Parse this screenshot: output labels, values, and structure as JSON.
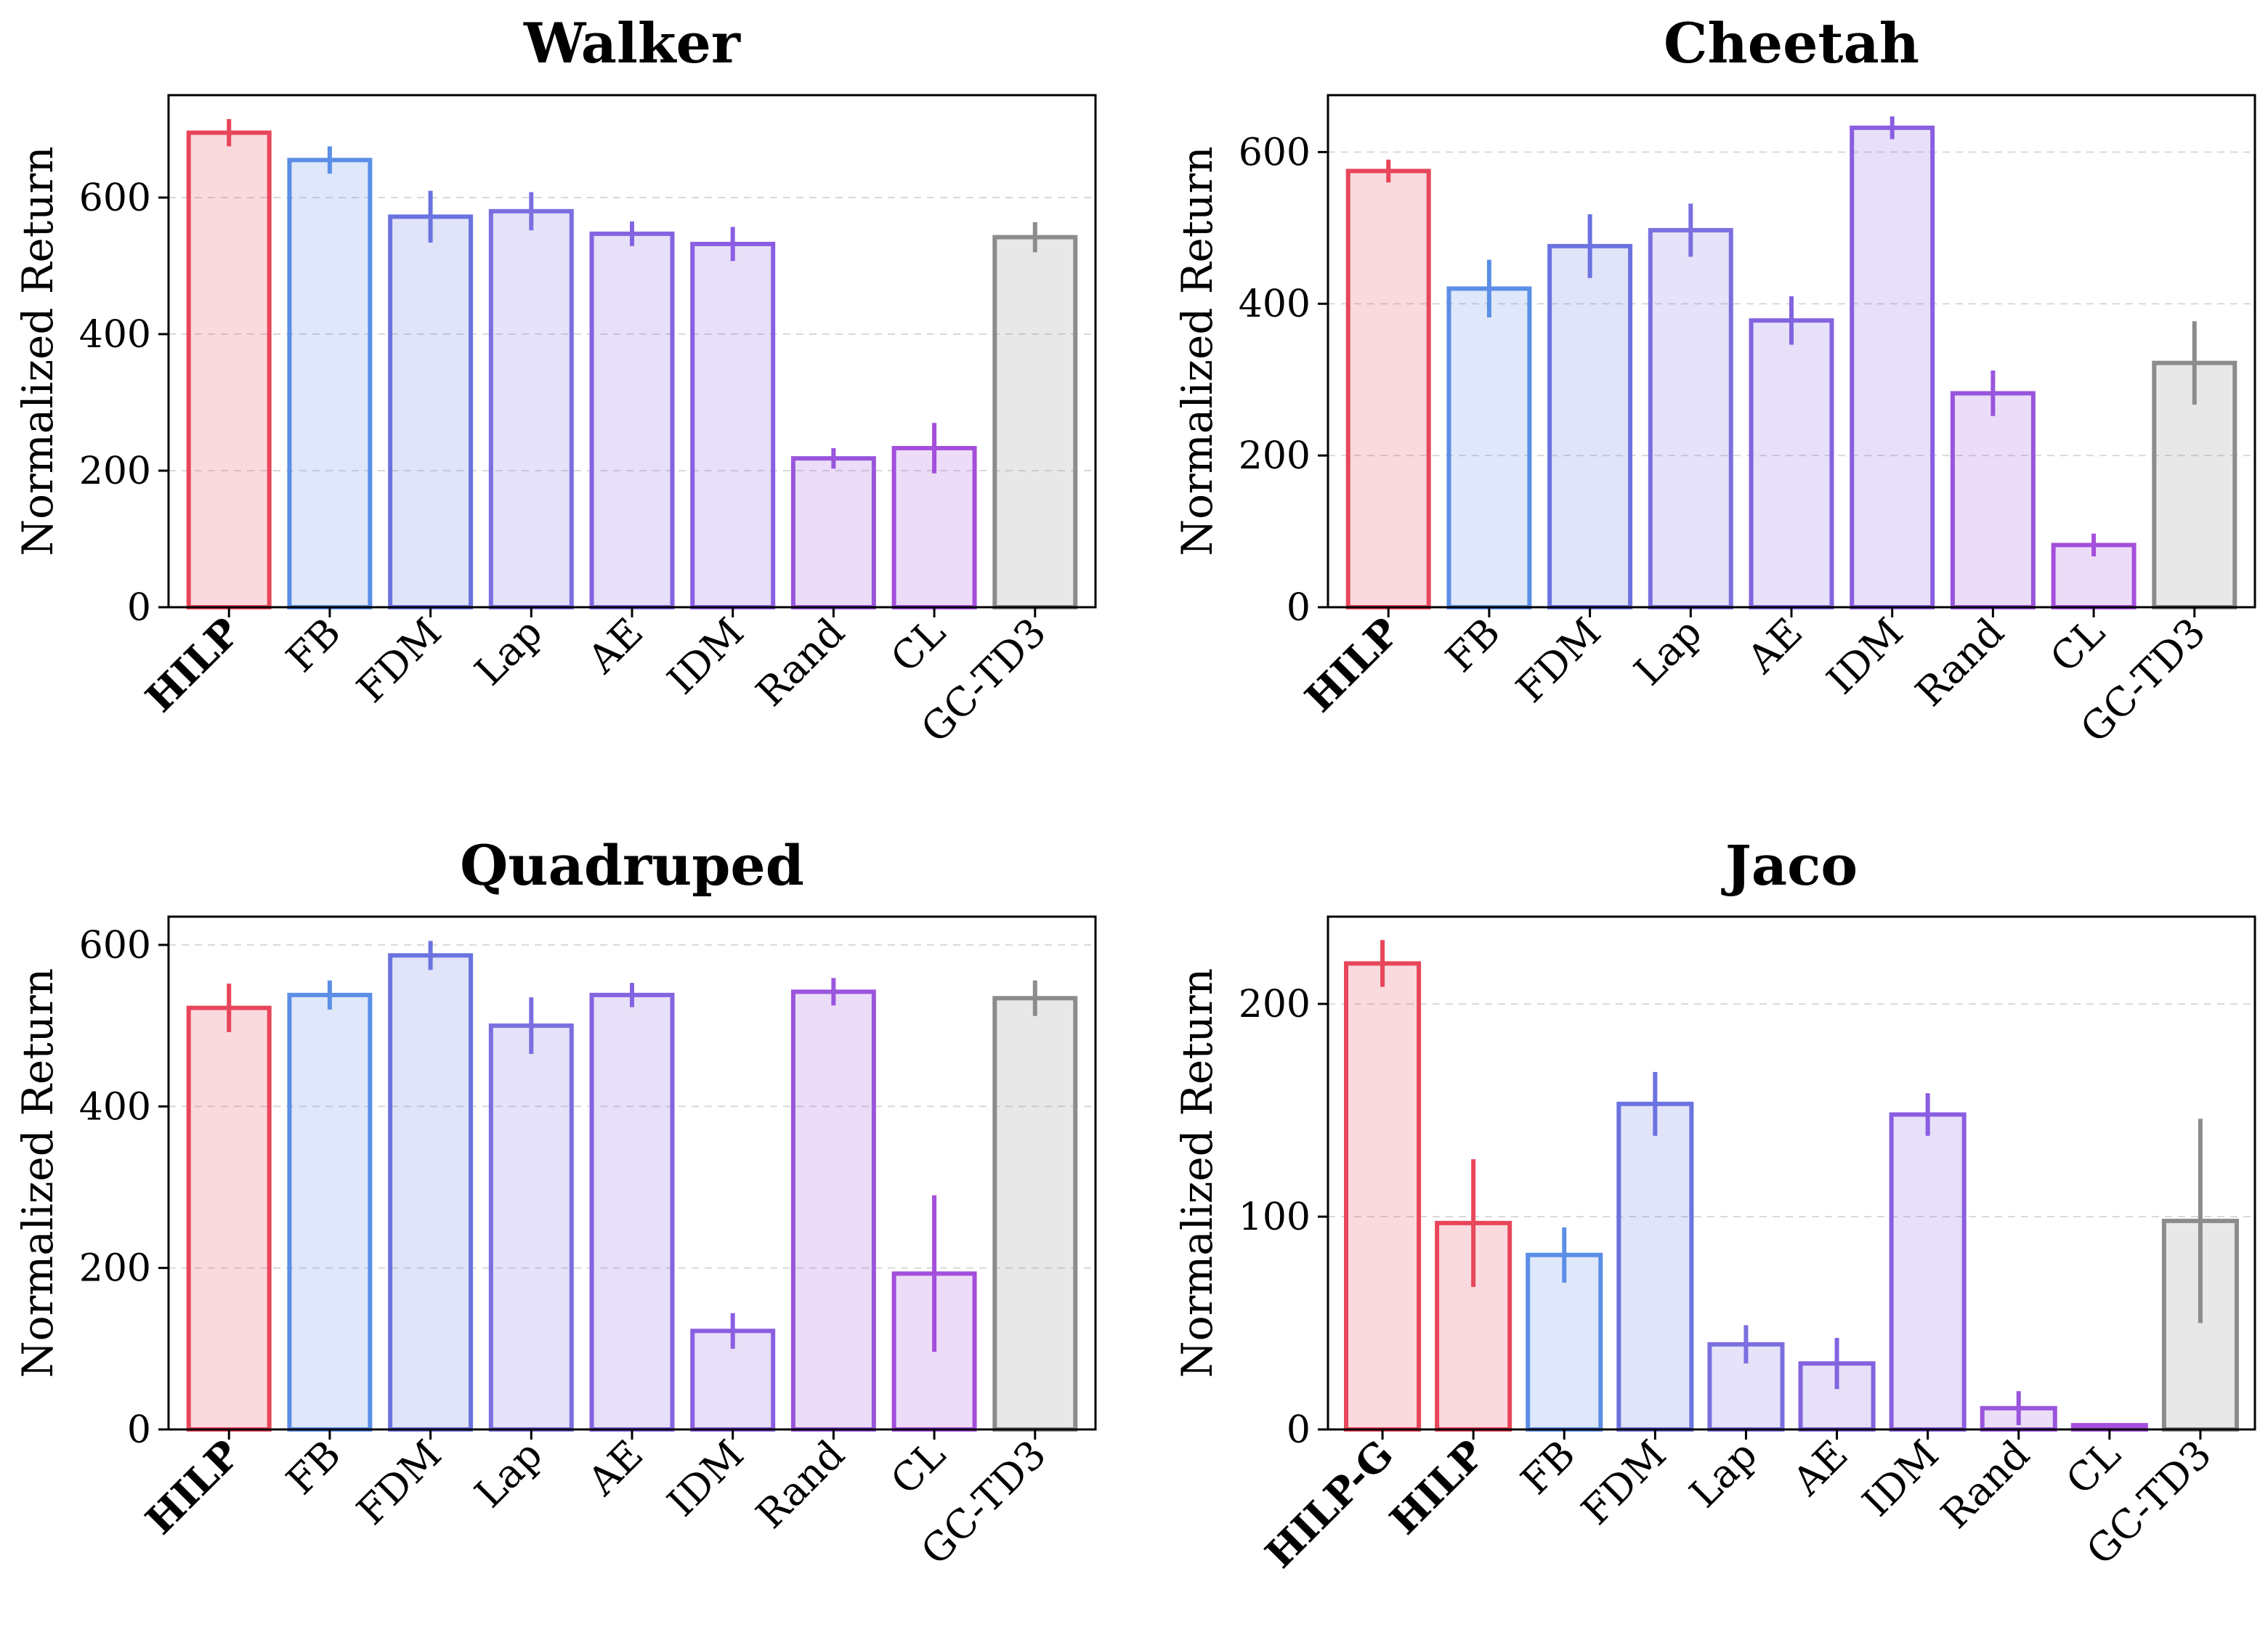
{
  "chart_data": [
    {
      "type": "bar",
      "title": "Walker",
      "ylabel": "Normalized Return",
      "ylim": [
        0,
        750
      ],
      "yticks": [
        0,
        200,
        400,
        600
      ],
      "grid": "y-dashed",
      "categories": [
        "HILP",
        "FB",
        "FDM",
        "Lap",
        "AE",
        "IDM",
        "Rand",
        "CL",
        "GC-TD3"
      ],
      "bold_categories": [
        "HILP"
      ],
      "values": [
        695,
        655,
        572,
        580,
        547,
        532,
        218,
        233,
        542
      ],
      "errors": [
        20,
        20,
        38,
        28,
        18,
        25,
        15,
        37,
        22
      ],
      "colors": [
        "#e8465a",
        "#5b8ee6",
        "#6b73e0",
        "#7b6fe0",
        "#8264e0",
        "#8a5ee2",
        "#9955dd",
        "#a44fdc",
        "#8c8c8c"
      ]
    },
    {
      "type": "bar",
      "title": "Cheetah",
      "ylabel": "Normalized Return",
      "ylim": [
        0,
        675
      ],
      "yticks": [
        0,
        200,
        400,
        600
      ],
      "grid": "y-dashed",
      "categories": [
        "HILP",
        "FB",
        "FDM",
        "Lap",
        "AE",
        "IDM",
        "Rand",
        "CL",
        "GC-TD3"
      ],
      "bold_categories": [
        "HILP"
      ],
      "values": [
        575,
        420,
        476,
        497,
        378,
        632,
        282,
        82,
        322
      ],
      "errors": [
        15,
        38,
        42,
        35,
        32,
        15,
        30,
        15,
        55
      ],
      "colors": [
        "#e8465a",
        "#5b8ee6",
        "#6b73e0",
        "#7b6fe0",
        "#8264e0",
        "#8a5ee2",
        "#9955dd",
        "#a44fdc",
        "#8c8c8c"
      ]
    },
    {
      "type": "bar",
      "title": "Quadruped",
      "ylabel": "Normalized Return",
      "ylim": [
        0,
        635
      ],
      "yticks": [
        0,
        200,
        400,
        600
      ],
      "grid": "y-dashed",
      "categories": [
        "HILP",
        "FB",
        "FDM",
        "Lap",
        "AE",
        "IDM",
        "Rand",
        "CL",
        "GC-TD3"
      ],
      "bold_categories": [
        "HILP"
      ],
      "values": [
        522,
        538,
        587,
        500,
        538,
        122,
        542,
        193,
        534
      ],
      "errors": [
        30,
        18,
        18,
        35,
        15,
        22,
        17,
        97,
        22
      ],
      "colors": [
        "#e8465a",
        "#5b8ee6",
        "#6b73e0",
        "#7b6fe0",
        "#8264e0",
        "#8a5ee2",
        "#9955dd",
        "#a44fdc",
        "#8c8c8c"
      ]
    },
    {
      "type": "bar",
      "title": "Jaco",
      "ylabel": "Normalized Return",
      "ylim": [
        0,
        241
      ],
      "yticks": [
        0,
        100,
        200
      ],
      "grid": "y-dashed",
      "categories": [
        "HILP-G",
        "HILP",
        "FB",
        "FDM",
        "Lap",
        "AE",
        "IDM",
        "Rand",
        "CL",
        "GC-TD3"
      ],
      "bold_categories": [
        "HILP-G",
        "HILP"
      ],
      "values": [
        219,
        97,
        82,
        153,
        40,
        31,
        148,
        10,
        2,
        98
      ],
      "errors": [
        11,
        30,
        13,
        15,
        9,
        12,
        10,
        8,
        1,
        48
      ],
      "colors": [
        "#e8465a",
        "#e8465a",
        "#5b8ee6",
        "#6b73e0",
        "#7b6fe0",
        "#8264e0",
        "#8a5ee2",
        "#9955dd",
        "#a44fdc",
        "#8c8c8c"
      ]
    }
  ]
}
